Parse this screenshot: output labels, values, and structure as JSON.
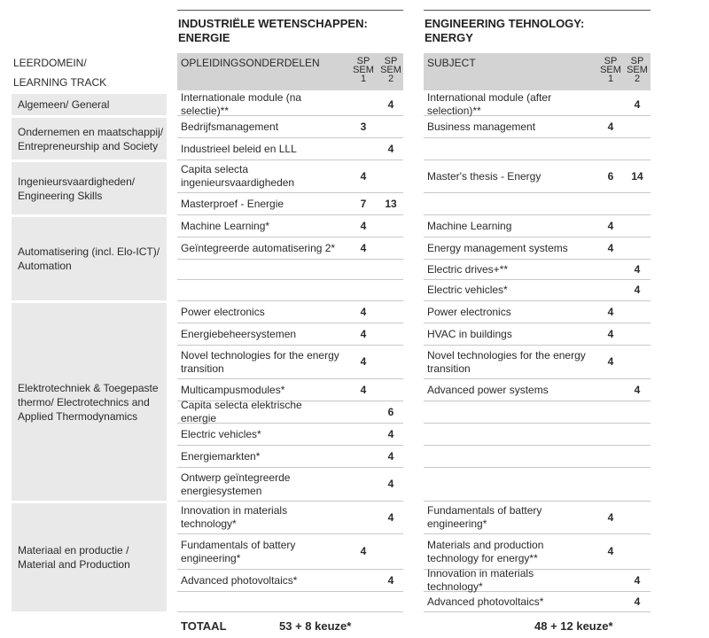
{
  "left_title": [
    "INDUSTRIËLE WETENSCHAPPEN:",
    "ENERGIE"
  ],
  "right_title": [
    "ENGINEERING TEHNOLOGY:",
    "ENERGY"
  ],
  "learning_track_header": [
    "LEERDOMEIN/",
    "LEARNING TRACK"
  ],
  "left_header": {
    "label": "OPLEIDINGSONDERDELEN",
    "sem1": [
      "SP",
      "SEM",
      "1"
    ],
    "sem2": [
      "SP",
      "SEM",
      "2"
    ]
  },
  "right_header": {
    "label": "SUBJECT",
    "sem1": [
      "SP",
      "SEM",
      "1"
    ],
    "sem2": [
      "SP",
      "SEM",
      "2"
    ]
  },
  "tracks": [
    "Algemeen/ General",
    "Ondernemen en maatschappij/ Entrepreneurship and Society",
    "Ingenieursvaardigheden/ Engineering Skills",
    "Automatisering (incl. Elo-ICT)/ Automation",
    "Elektrotechniek & Toegepaste thermo/ Electrotechnics and Applied Thermodynamics",
    "Materiaal en productie / Material and Production"
  ],
  "rows": [
    {
      "left": {
        "name": "Internationale module (na selectie)**",
        "s1": "",
        "s2": "4"
      },
      "right": {
        "name": "International module (after selection)**",
        "s1": "",
        "s2": "4"
      }
    },
    {
      "left": {
        "name": "Bedrijfsmanagement",
        "s1": "3",
        "s2": ""
      },
      "right": {
        "name": "Business management",
        "s1": "4",
        "s2": ""
      }
    },
    {
      "left": {
        "name": "Industrieel beleid en LLL",
        "s1": "",
        "s2": "4"
      },
      "right": {
        "name": "",
        "s1": "",
        "s2": ""
      }
    },
    {
      "left": {
        "name": "Capita selecta ingenieursvaardigheden",
        "s1": "4",
        "s2": ""
      },
      "right": {
        "name": "Master's thesis - Energy",
        "s1": "6",
        "s2": "14"
      }
    },
    {
      "left": {
        "name": "Masterproef - Energie",
        "s1": "7",
        "s2": "13"
      },
      "right": {
        "name": "",
        "s1": "",
        "s2": ""
      }
    },
    {
      "left": {
        "name": "Machine Learning*",
        "s1": "4",
        "s2": ""
      },
      "right": {
        "name": "Machine Learning",
        "s1": "4",
        "s2": ""
      }
    },
    {
      "left": {
        "name": "Geïntegreerde automatisering 2*",
        "s1": "4",
        "s2": ""
      },
      "right": {
        "name": "Energy management systems",
        "s1": "4",
        "s2": ""
      }
    },
    {
      "left": {
        "name": "",
        "s1": "",
        "s2": ""
      },
      "right": {
        "name": "Electric drives+**",
        "s1": "",
        "s2": "4"
      }
    },
    {
      "left": {
        "name": "",
        "s1": "",
        "s2": ""
      },
      "right": {
        "name": "Electric vehicles*",
        "s1": "",
        "s2": "4"
      }
    },
    {
      "left": {
        "name": "Power electronics",
        "s1": "4",
        "s2": ""
      },
      "right": {
        "name": "Power electronics",
        "s1": "4",
        "s2": ""
      }
    },
    {
      "left": {
        "name": "Energiebeheersystemen",
        "s1": "4",
        "s2": ""
      },
      "right": {
        "name": "HVAC in buildings",
        "s1": "4",
        "s2": ""
      }
    },
    {
      "left": {
        "name": "Novel technologies for the energy transition",
        "s1": "4",
        "s2": ""
      },
      "right": {
        "name": "Novel technologies for the energy transition",
        "s1": "4",
        "s2": ""
      }
    },
    {
      "left": {
        "name": "Multicampusmodules*",
        "s1": "4",
        "s2": ""
      },
      "right": {
        "name": "Advanced power systems",
        "s1": "",
        "s2": "4"
      }
    },
    {
      "left": {
        "name": "Capita selecta elektrische energie",
        "s1": "",
        "s2": "6"
      },
      "right": {
        "name": "",
        "s1": "",
        "s2": ""
      }
    },
    {
      "left": {
        "name": "Electric vehicles*",
        "s1": "",
        "s2": "4"
      },
      "right": {
        "name": "",
        "s1": "",
        "s2": ""
      }
    },
    {
      "left": {
        "name": "Energiemarkten*",
        "s1": "",
        "s2": "4"
      },
      "right": {
        "name": "",
        "s1": "",
        "s2": ""
      }
    },
    {
      "left": {
        "name": "Ontwerp geïntegreerde energiesystemen",
        "s1": "",
        "s2": "4"
      },
      "right": {
        "name": "",
        "s1": "",
        "s2": ""
      }
    },
    {
      "left": {
        "name": "Innovation in materials technology*",
        "s1": "",
        "s2": "4"
      },
      "right": {
        "name": "Fundamentals of battery engineering*",
        "s1": "4",
        "s2": ""
      }
    },
    {
      "left": {
        "name": "Fundamentals of battery engineering*",
        "s1": "4",
        "s2": ""
      },
      "right": {
        "name": "Materials and production technology for energy**",
        "s1": "4",
        "s2": ""
      }
    },
    {
      "left": {
        "name": "Advanced photovoltaics*",
        "s1": "",
        "s2": "4"
      },
      "right": {
        "name": "Innovation in materials technology*",
        "s1": "",
        "s2": "4"
      }
    },
    {
      "left": {
        "name": "",
        "s1": "",
        "s2": ""
      },
      "right": {
        "name": "Advanced photovoltaics*",
        "s1": "",
        "s2": "4"
      }
    }
  ],
  "total": {
    "label": "TOTAAL",
    "left": "53 + 8 keuze*",
    "right": "48 + 12 keuze*"
  }
}
